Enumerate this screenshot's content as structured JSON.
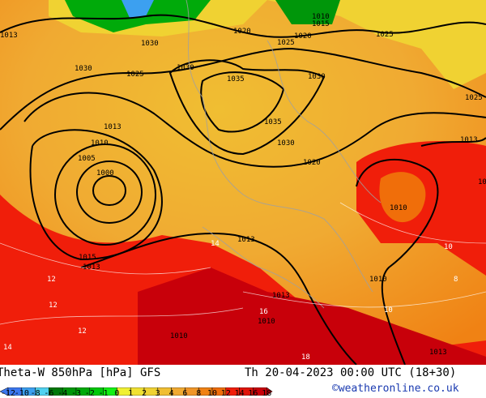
{
  "header": {
    "title": "Theta-W 850hPa [hPa] GFS",
    "datetime": "Th 20-04-2023 00:00 UTC (18+30)",
    "copyright": "©weatheronline.co.uk"
  },
  "legend": {
    "ticks": [
      "-12",
      "-10",
      "-8",
      "-6",
      "-4",
      "-3",
      "-2",
      "-1",
      "0",
      "1",
      "2",
      "3",
      "4",
      "6",
      "8",
      "10",
      "12",
      "14",
      "16",
      "18"
    ],
    "colors": [
      "#3c78f0",
      "#3ca0f0",
      "#50d2f0",
      "#00780a",
      "#00960a",
      "#00aa0a",
      "#00c80a",
      "#14f014",
      "#f0f032",
      "#f0e132",
      "#f0d232",
      "#f0be32",
      "#f0aa32",
      "#f09628",
      "#f08214",
      "#f06e0a",
      "#f01e0a",
      "#e0140a",
      "#c8000a"
    ]
  },
  "map": {
    "isobar_labels": [
      "1013",
      "1030",
      "1020",
      "1025",
      "1020",
      "1025",
      "1010",
      "1015",
      "1030",
      "1025",
      "1030",
      "1035",
      "1030",
      "1025",
      "1013",
      "1010",
      "1005",
      "1000",
      "1035",
      "1030",
      "1020",
      "1013",
      "1010",
      "1013",
      "1015",
      "1013",
      "1010",
      "1013",
      "1010",
      "1013",
      "1010",
      "1013"
    ],
    "temp_labels": [
      "12",
      "12",
      "14",
      "16",
      "18",
      "10",
      "12",
      "14",
      "8",
      "10"
    ]
  }
}
